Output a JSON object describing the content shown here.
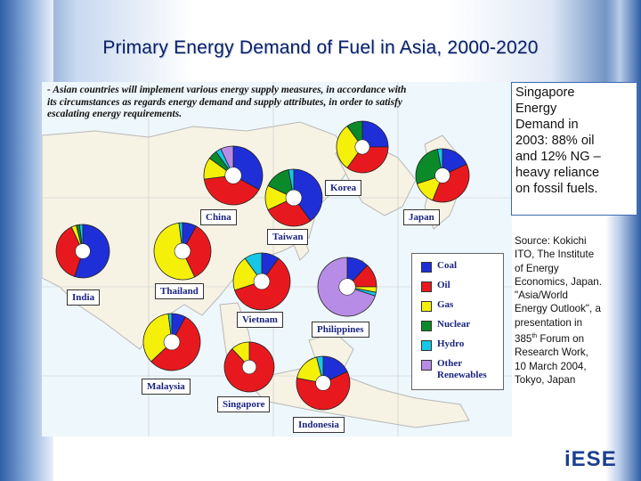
{
  "title": "Primary Energy Demand of Fuel in Asia, 2000-2020",
  "intro_lines": [
    "- Asian countries will implement various energy supply measures, in accordance with",
    "its circumstances as regards energy demand and supply attributes, in order to satisfy",
    "escalating energy requirements."
  ],
  "countries": [
    "China",
    "Korea",
    "Japan",
    "Taiwan",
    "India",
    "Thailand",
    "Vietnam",
    "Philippines",
    "Malaysia",
    "Singapore",
    "Indonesia"
  ],
  "legend": [
    {
      "label": "Coal",
      "color": "#1f2fd8"
    },
    {
      "label": "Oil",
      "color": "#e8191e"
    },
    {
      "label": "Gas",
      "color": "#f4f00a"
    },
    {
      "label": "Nuclear",
      "color": "#0b8a2a"
    },
    {
      "label": "Hydro",
      "color": "#16c7e6"
    },
    {
      "label": "Other",
      "label2": "Renewables",
      "color": "#b78ce6"
    }
  ],
  "highlight_lines": [
    "Singapore",
    "Energy",
    "Demand in",
    "2003: 88% oil",
    "and 12% NG –",
    "heavy reliance",
    "on fossil fuels."
  ],
  "source_lines": [
    "Source: Kokichi",
    "ITO, The Institute",
    "of Energy",
    "Economics, Japan.",
    "\"Asia/World",
    "Energy Outlook\", a",
    "presentation in"
  ],
  "source_forum": {
    "num": "385",
    "sup": "th",
    "rest": " Forum on"
  },
  "source_lines_end": [
    "Research Work,",
    "10 March 2004,",
    "Tokyo, Japan"
  ],
  "logo": {
    "i": "i",
    "text": "ESE"
  }
}
